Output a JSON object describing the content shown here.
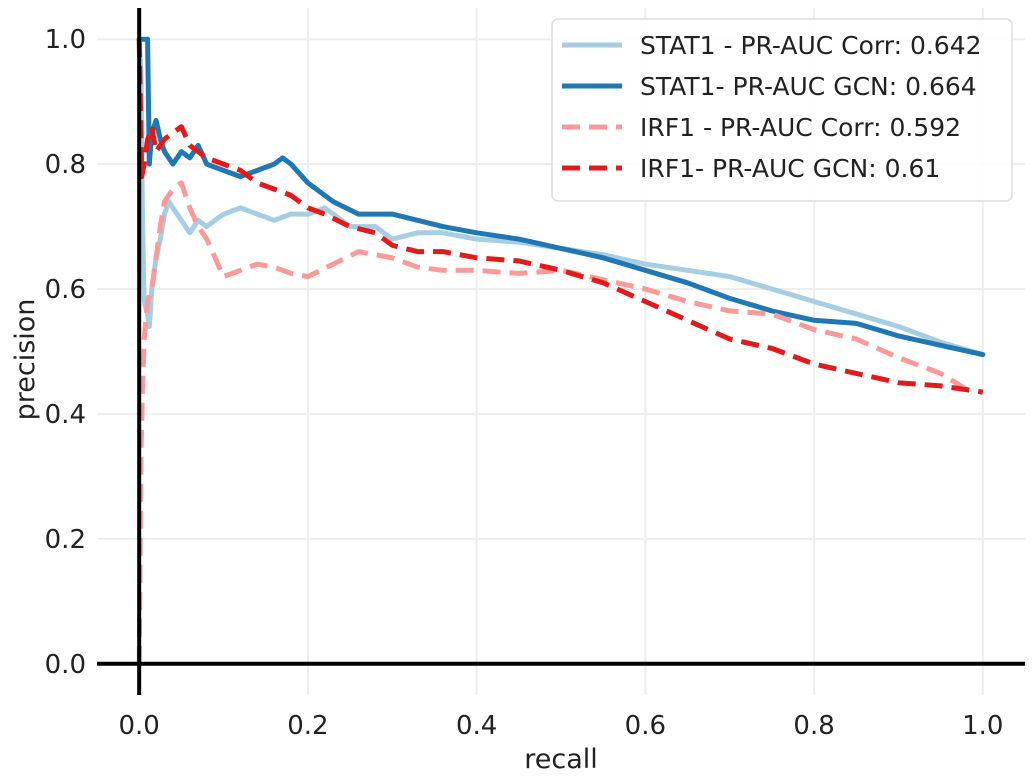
{
  "chart_data": {
    "type": "line",
    "title": "",
    "xlabel": "recall",
    "ylabel": "precision",
    "xlim": [
      -0.05,
      1.05
    ],
    "ylim": [
      -0.05,
      1.05
    ],
    "grid": true,
    "legend_position": "top-right",
    "x_ticks": [
      0.0,
      0.2,
      0.4,
      0.6,
      0.8,
      1.0
    ],
    "x_tick_labels": [
      "0.0",
      "0.2",
      "0.4",
      "0.6",
      "0.8",
      "1.0"
    ],
    "y_ticks": [
      0.0,
      0.2,
      0.4,
      0.6,
      0.8,
      1.0
    ],
    "y_tick_labels": [
      "0.0",
      "0.2",
      "0.4",
      "0.6",
      "0.8",
      "1.0"
    ],
    "series": [
      {
        "name": "STAT1 - PR-AUC Corr: 0.642",
        "color": "#a6cee3",
        "dash": "solid",
        "x": [
          0.0,
          0.002,
          0.004,
          0.006,
          0.01,
          0.012,
          0.015,
          0.02,
          0.025,
          0.03,
          0.035,
          0.04,
          0.05,
          0.06,
          0.07,
          0.08,
          0.09,
          0.1,
          0.12,
          0.14,
          0.16,
          0.18,
          0.2,
          0.22,
          0.25,
          0.28,
          0.3,
          0.33,
          0.36,
          0.4,
          0.45,
          0.5,
          0.55,
          0.6,
          0.65,
          0.7,
          0.75,
          0.8,
          0.85,
          0.9,
          0.95,
          1.0
        ],
        "y": [
          1.0,
          0.95,
          0.7,
          0.58,
          0.56,
          0.54,
          0.6,
          0.65,
          0.68,
          0.72,
          0.74,
          0.73,
          0.71,
          0.69,
          0.71,
          0.7,
          0.71,
          0.72,
          0.73,
          0.72,
          0.71,
          0.72,
          0.72,
          0.73,
          0.7,
          0.7,
          0.68,
          0.69,
          0.69,
          0.68,
          0.675,
          0.665,
          0.655,
          0.64,
          0.63,
          0.62,
          0.6,
          0.58,
          0.56,
          0.54,
          0.515,
          0.495
        ]
      },
      {
        "name": "STAT1- PR-AUC GCN: 0.664",
        "color": "#1f78b4",
        "dash": "solid",
        "x": [
          0.0,
          0.005,
          0.01,
          0.012,
          0.015,
          0.02,
          0.025,
          0.03,
          0.04,
          0.05,
          0.06,
          0.07,
          0.08,
          0.1,
          0.12,
          0.14,
          0.16,
          0.17,
          0.18,
          0.2,
          0.23,
          0.26,
          0.3,
          0.33,
          0.36,
          0.4,
          0.45,
          0.5,
          0.55,
          0.6,
          0.65,
          0.7,
          0.75,
          0.8,
          0.85,
          0.9,
          0.95,
          1.0
        ],
        "y": [
          1.0,
          1.0,
          1.0,
          0.8,
          0.85,
          0.87,
          0.84,
          0.82,
          0.8,
          0.82,
          0.81,
          0.83,
          0.8,
          0.79,
          0.78,
          0.79,
          0.8,
          0.81,
          0.8,
          0.77,
          0.74,
          0.72,
          0.72,
          0.71,
          0.7,
          0.69,
          0.68,
          0.665,
          0.65,
          0.63,
          0.61,
          0.585,
          0.565,
          0.55,
          0.545,
          0.525,
          0.51,
          0.495
        ]
      },
      {
        "name": "IRF1 - PR-AUC Corr: 0.592",
        "color": "#fb9a99",
        "dash": "dashed",
        "x": [
          0.0,
          0.002,
          0.004,
          0.006,
          0.008,
          0.01,
          0.015,
          0.02,
          0.025,
          0.03,
          0.04,
          0.05,
          0.06,
          0.07,
          0.08,
          0.09,
          0.1,
          0.12,
          0.14,
          0.16,
          0.18,
          0.2,
          0.23,
          0.26,
          0.3,
          0.33,
          0.36,
          0.4,
          0.45,
          0.5,
          0.55,
          0.6,
          0.65,
          0.7,
          0.75,
          0.8,
          0.85,
          0.9,
          0.95,
          0.98
        ],
        "y": [
          0.0,
          0.33,
          0.45,
          0.52,
          0.55,
          0.58,
          0.6,
          0.65,
          0.7,
          0.74,
          0.76,
          0.77,
          0.73,
          0.7,
          0.68,
          0.65,
          0.62,
          0.63,
          0.64,
          0.635,
          0.625,
          0.62,
          0.64,
          0.66,
          0.65,
          0.635,
          0.63,
          0.63,
          0.625,
          0.63,
          0.615,
          0.6,
          0.58,
          0.565,
          0.56,
          0.535,
          0.52,
          0.49,
          0.465,
          0.44
        ]
      },
      {
        "name": "IRF1- PR-AUC GCN: 0.61",
        "color": "#e31a1c",
        "dash": "dashed",
        "x": [
          0.0,
          0.003,
          0.006,
          0.008,
          0.01,
          0.015,
          0.02,
          0.025,
          0.03,
          0.04,
          0.05,
          0.06,
          0.07,
          0.08,
          0.1,
          0.12,
          0.14,
          0.16,
          0.18,
          0.2,
          0.22,
          0.25,
          0.28,
          0.3,
          0.33,
          0.36,
          0.4,
          0.45,
          0.5,
          0.55,
          0.6,
          0.65,
          0.7,
          0.75,
          0.8,
          0.85,
          0.9,
          0.95,
          1.0
        ],
        "y": [
          1.0,
          0.78,
          0.8,
          0.82,
          0.84,
          0.86,
          0.82,
          0.83,
          0.84,
          0.85,
          0.86,
          0.83,
          0.82,
          0.81,
          0.8,
          0.79,
          0.77,
          0.76,
          0.75,
          0.73,
          0.72,
          0.7,
          0.69,
          0.67,
          0.66,
          0.66,
          0.65,
          0.645,
          0.63,
          0.61,
          0.58,
          0.55,
          0.52,
          0.505,
          0.48,
          0.465,
          0.45,
          0.445,
          0.435
        ]
      }
    ]
  }
}
